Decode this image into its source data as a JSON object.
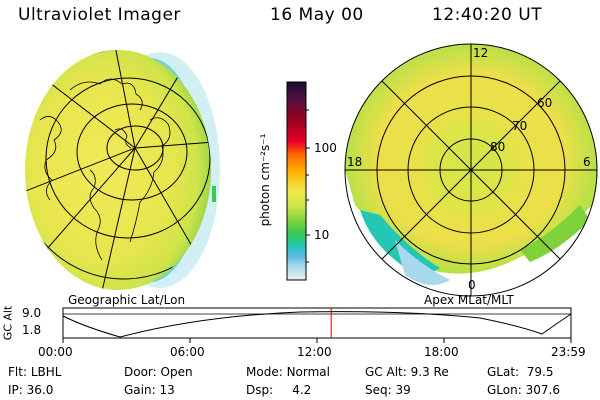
{
  "header": {
    "instrument": "Ultraviolet Imager",
    "date": "16 May 00",
    "time": "12:40:20 UT"
  },
  "colorbar": {
    "label": "photon cm⁻²s⁻¹",
    "ticks": [
      "100",
      "10"
    ],
    "scale": "log",
    "colors": [
      "#1a0d2e",
      "#4d1040",
      "#a0001e",
      "#e6002a",
      "#ff6a00",
      "#ffb000",
      "#f2e84a",
      "#c8e64a",
      "#7fd23a",
      "#3ec850",
      "#23c8b4",
      "#59b8e6",
      "#a8d8ec",
      "#e8eef0"
    ]
  },
  "left_panel": {
    "label": "Geographic Lat/Lon"
  },
  "right_panel": {
    "label": "Apex MLat/MLT",
    "mlt_labels": {
      "top": "12",
      "left": "18",
      "right": "6",
      "bottom": "0"
    },
    "lat_labels": [
      "60",
      "70",
      "80"
    ]
  },
  "altitude_plot": {
    "ylabel": "GC Alt",
    "yticks": [
      "9.0",
      "1.8"
    ],
    "xticks": [
      "00:00",
      "06:00",
      "12:00",
      "18:00",
      "23:59"
    ],
    "current_time_hours": 12.67
  },
  "status": {
    "row1": [
      {
        "key": "Flt:",
        "value": "LBHL"
      },
      {
        "key": "Door:",
        "value": "Open"
      },
      {
        "key": "Mode:",
        "value": "Normal"
      },
      {
        "key": "GC Alt:",
        "value": "9.3 Re"
      },
      {
        "key": "GLat:",
        "value": "79.5"
      }
    ],
    "row2": [
      {
        "key": "IP:",
        "value": "36.0"
      },
      {
        "key": "Gain:",
        "value": "13"
      },
      {
        "key": "Dsp:",
        "value": "4.2"
      },
      {
        "key": "Seq:",
        "value": "39"
      },
      {
        "key": "GLon:",
        "value": "307.6"
      }
    ]
  }
}
